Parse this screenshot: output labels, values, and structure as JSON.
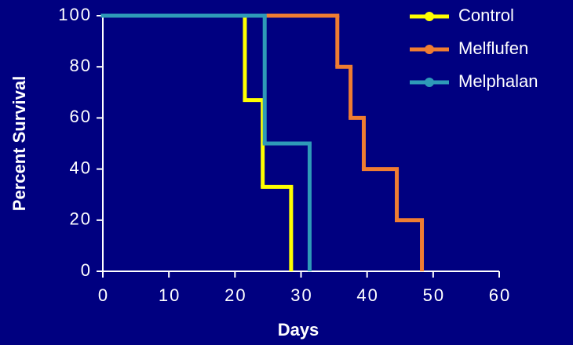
{
  "chart_data": {
    "type": "step",
    "x_label": "Days",
    "y_label": "Percent Survival",
    "xlim": [
      0,
      60
    ],
    "xticks": [
      0,
      10,
      20,
      30,
      40,
      50,
      60
    ],
    "ylim": [
      0,
      100
    ],
    "yticks": [
      0,
      20,
      40,
      60,
      80,
      100
    ],
    "legend": "top-right",
    "background": "#000080",
    "series": [
      {
        "name": "Control",
        "color": "#ffff00",
        "x": [
          0,
          21.5,
          24.2,
          28.5
        ],
        "values": [
          100,
          67,
          33,
          0
        ]
      },
      {
        "name": "Melflufen",
        "color": "#ef7d32",
        "x": [
          0,
          35.5,
          37.5,
          39.5,
          44.5,
          48.3
        ],
        "values": [
          100,
          80,
          60,
          40,
          20,
          0
        ]
      },
      {
        "name": "Melphalan",
        "color": "#2e9ab8",
        "x": [
          0,
          24.5,
          31.3
        ],
        "values": [
          100,
          50,
          0
        ]
      }
    ]
  }
}
